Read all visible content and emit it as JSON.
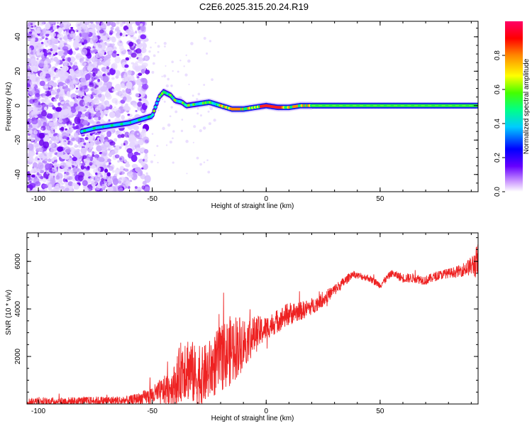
{
  "title": "C2E6.2025.315.20.24.R19",
  "chart_data": [
    {
      "type": "heatmap",
      "title": "C2E6.2025.315.20.24.R19",
      "xlabel": "Height of straight line (km)",
      "ylabel": "Frequency (Hz)",
      "xlim": [
        -105,
        93
      ],
      "ylim": [
        -50,
        49
      ],
      "xticks": [
        -100,
        -50,
        0,
        50
      ],
      "yticks": [
        -40,
        -20,
        0,
        20,
        40
      ],
      "ridge": {
        "description": "dominant frequency ridge vs height",
        "x": [
          -81,
          -75,
          -70,
          -65,
          -60,
          -55,
          -50,
          -47,
          -45,
          -42,
          -40,
          -37,
          -35,
          -30,
          -25,
          -20,
          -15,
          -10,
          -5,
          0,
          5,
          10,
          15,
          20,
          30,
          40,
          50,
          60,
          70,
          80,
          90
        ],
        "y": [
          -15,
          -13,
          -12,
          -11,
          -10,
          -8,
          -6,
          5,
          8,
          6,
          3,
          2,
          0,
          1,
          2,
          0,
          -2,
          -2,
          -1,
          0,
          -1,
          -1,
          0,
          0,
          0,
          0,
          0,
          0,
          0,
          0,
          0
        ]
      },
      "colorbar": {
        "label": "Normalized spectral amplitude",
        "ticks": [
          0.0,
          0.2,
          0.4,
          0.6,
          0.8
        ],
        "range": [
          0,
          1
        ],
        "colors": [
          "#ffffff",
          "#7700ff",
          "#0000ff",
          "#00ffff",
          "#00ff00",
          "#ffff00",
          "#ff8800",
          "#ff0000",
          "#ff0077"
        ]
      }
    },
    {
      "type": "line",
      "title": "",
      "xlabel": "Height of straight line (km)",
      "ylabel": "SNR (10 * v/v)",
      "xlim": [
        -105,
        93
      ],
      "ylim": [
        0,
        7200
      ],
      "xticks": [
        -100,
        -50,
        0,
        50
      ],
      "yticks": [
        2000,
        4000,
        6000
      ],
      "color": "#ee2222",
      "envelope": {
        "x": [
          -105,
          -60,
          -55,
          -50,
          -45,
          -40,
          -36,
          -33,
          -30,
          -25,
          -20,
          -15,
          -12,
          -10,
          -5,
          0,
          5,
          10,
          15,
          20,
          25,
          30,
          35,
          38,
          40,
          45,
          50,
          55,
          60,
          65,
          70,
          75,
          80,
          85,
          90,
          93
        ],
        "mean": [
          100,
          150,
          250,
          350,
          550,
          800,
          1700,
          1400,
          1000,
          1400,
          1900,
          2300,
          2500,
          2600,
          2900,
          3200,
          3500,
          3800,
          3900,
          4100,
          4400,
          4800,
          5200,
          5500,
          5400,
          5300,
          5000,
          5500,
          5300,
          5300,
          5200,
          5400,
          5500,
          5600,
          5800,
          6000
        ],
        "amp": [
          150,
          200,
          250,
          400,
          600,
          900,
          1500,
          1400,
          1200,
          1300,
          1400,
          1500,
          1300,
          1100,
          800,
          500,
          500,
          500,
          400,
          350,
          300,
          250,
          200,
          150,
          150,
          150,
          150,
          150,
          200,
          200,
          200,
          200,
          200,
          250,
          400,
          800
        ]
      }
    }
  ]
}
